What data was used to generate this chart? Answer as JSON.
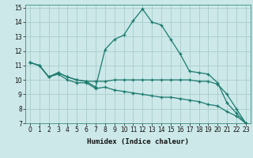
{
  "xlabel": "Humidex (Indice chaleur)",
  "bg_color": "#cce8e8",
  "grid_color": "#aacccc",
  "line_color": "#1a7a6e",
  "xlim": [
    -0.5,
    23.5
  ],
  "ylim": [
    7,
    15.2
  ],
  "xticks": [
    0,
    1,
    2,
    3,
    4,
    5,
    6,
    7,
    8,
    9,
    10,
    11,
    12,
    13,
    14,
    15,
    16,
    17,
    18,
    19,
    20,
    21,
    22,
    23
  ],
  "yticks": [
    7,
    8,
    9,
    10,
    11,
    12,
    13,
    14,
    15
  ],
  "line1_x": [
    0,
    1,
    2,
    3,
    4,
    5,
    6,
    7,
    8,
    9,
    10,
    11,
    12,
    13,
    14,
    15,
    16,
    17,
    18,
    19,
    20,
    21,
    22,
    23
  ],
  "line1_y": [
    11.2,
    11.0,
    10.2,
    10.5,
    10.2,
    10.0,
    9.9,
    9.5,
    12.1,
    12.8,
    13.1,
    14.1,
    14.9,
    14.0,
    13.8,
    12.8,
    11.8,
    10.6,
    10.5,
    10.4,
    9.8,
    8.4,
    7.7,
    7.0
  ],
  "line2_x": [
    0,
    1,
    2,
    3,
    4,
    5,
    6,
    7,
    8,
    9,
    10,
    11,
    12,
    13,
    14,
    15,
    16,
    17,
    18,
    19,
    20,
    21,
    22,
    23
  ],
  "line2_y": [
    11.2,
    11.0,
    10.2,
    10.5,
    10.2,
    10.0,
    9.9,
    9.9,
    9.9,
    10.0,
    10.0,
    10.0,
    10.0,
    10.0,
    10.0,
    10.0,
    10.0,
    10.0,
    9.9,
    9.9,
    9.7,
    9.0,
    8.0,
    7.0
  ],
  "line3_x": [
    0,
    1,
    2,
    3,
    4,
    5,
    6,
    7,
    8,
    9,
    10,
    11,
    12,
    13,
    14,
    15,
    16,
    17,
    18,
    19,
    20,
    21,
    22,
    23
  ],
  "line3_y": [
    11.2,
    11.0,
    10.2,
    10.4,
    10.0,
    9.8,
    9.8,
    9.4,
    9.5,
    9.3,
    9.2,
    9.1,
    9.0,
    8.9,
    8.8,
    8.8,
    8.7,
    8.6,
    8.5,
    8.3,
    8.2,
    7.8,
    7.5,
    7.0
  ]
}
